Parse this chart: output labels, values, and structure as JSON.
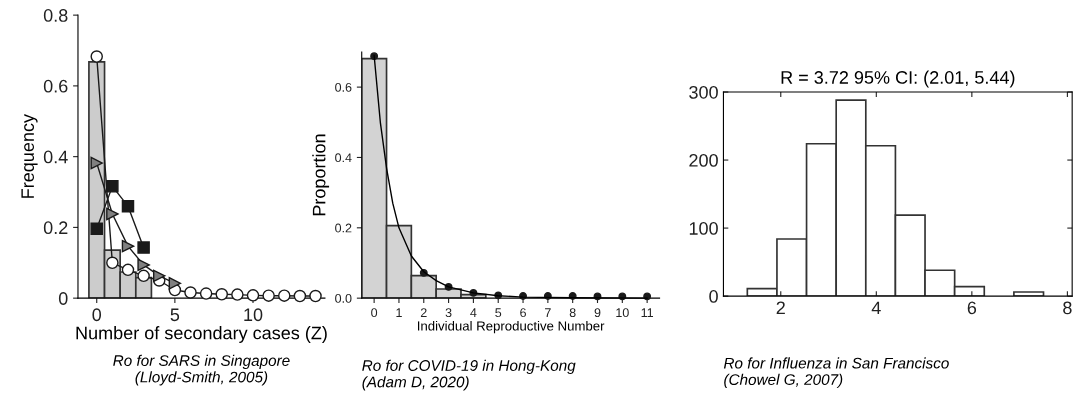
{
  "chart_data": [
    {
      "type": "histogram",
      "bins": [
        -0.5,
        0.5,
        1.5,
        2.5,
        3.5
      ],
      "values": [
        0.668,
        0.136,
        0.074,
        0.058
      ],
      "color": "#cccccc",
      "xlabel": "Number of secondary cases (Z)",
      "ylabel": "Frequency",
      "xlim": [
        -1.2,
        14.6
      ],
      "ylim": [
        0,
        0.8
      ],
      "xticks": [
        0,
        5,
        10
      ],
      "yticks": [
        0,
        {
          "value": 0.2,
          "label": "0.2"
        },
        {
          "value": 0.4,
          "label": "0.4"
        },
        {
          "value": 0.6,
          "label": "0.6"
        },
        {
          "value": 0.8,
          "label": "0.8"
        }
      ],
      "grid": false,
      "legend": false,
      "annotations": [
        "Ro for SARS in Singapore\n(Lloyd-Smith, 2005)"
      ],
      "series": [
        {
          "type": "line",
          "marker": "square",
          "color": "#1a1a1a",
          "x": [
            0,
            1,
            2,
            3
          ],
          "values": [
            0.196,
            0.316,
            0.26,
            0.143
          ]
        },
        {
          "type": "line",
          "marker": "triangle",
          "color": "#808080",
          "x": [
            0,
            1,
            2,
            3,
            4,
            5
          ],
          "values": [
            0.382,
            0.238,
            0.147,
            0.094,
            0.063,
            0.042
          ]
        },
        {
          "type": "line",
          "marker": "circle",
          "color": "#ffffff",
          "x": [
            0,
            1,
            2,
            3,
            4,
            5,
            6,
            7,
            8,
            9,
            10,
            11,
            12,
            13,
            14
          ],
          "values": [
            0.683,
            0.1,
            0.08,
            0.063,
            0.05,
            0.023,
            0.016,
            0.013,
            0.011,
            0.01,
            0.008,
            0.007,
            0.007,
            0.006,
            0.006
          ]
        }
      ]
    },
    {
      "type": "histogram",
      "bins": [
        -0.5,
        0.5,
        1.5,
        2.5,
        3.5,
        4.5
      ],
      "values": [
        0.681,
        0.206,
        0.064,
        0.026,
        0.01
      ],
      "color": "#d3d3d3",
      "xlabel": "Individual Reproductive Number",
      "ylabel": "Proportion",
      "xlim": [
        -0.5,
        11.5
      ],
      "ylim": [
        0,
        0.7
      ],
      "xticks": [
        0,
        1,
        2,
        3,
        4,
        5,
        6,
        7,
        8,
        9,
        10,
        11
      ],
      "yticks": [
        {
          "value": 0,
          "label": "0.0"
        },
        {
          "value": 0.2,
          "label": "0.2"
        },
        {
          "value": 0.4,
          "label": "0.4"
        },
        {
          "value": 0.6,
          "label": "0.6"
        }
      ],
      "grid": false,
      "legend": false,
      "annotations": [
        "Ro for COVID-19 in Hong-Kong\n(Adam D, 2020)"
      ],
      "series": [
        {
          "type": "line",
          "marker": "none",
          "color": "#000000",
          "x": [
            0,
            0.25,
            0.5,
            0.75,
            1,
            1.5,
            2,
            2.5,
            3,
            4,
            5,
            6,
            8,
            11
          ],
          "values": [
            0.69,
            0.5,
            0.37,
            0.27,
            0.2,
            0.12,
            0.075,
            0.05,
            0.032,
            0.015,
            0.007,
            0.003,
            0.001,
            0
          ]
        },
        {
          "type": "scatter",
          "marker": "circle",
          "color": "#1a1a1a",
          "x": [
            0,
            2,
            3,
            4,
            5,
            6,
            7,
            8,
            9,
            10,
            11
          ],
          "values": [
            0.688,
            0.072,
            0.032,
            0.015,
            0.008,
            0.006,
            0.006,
            0.006,
            0.005,
            0.005,
            0.005
          ]
        }
      ]
    },
    {
      "type": "histogram",
      "title": "R = 3.72 95% CI: (2.01, 5.44)",
      "bins": [
        1.3,
        1.92,
        2.54,
        3.16,
        3.78,
        4.4,
        5.02,
        5.64,
        6.26,
        6.88,
        7.5
      ],
      "values": [
        11,
        84,
        224,
        288,
        221,
        119,
        38,
        14,
        0,
        6
      ],
      "color": "#ffffff",
      "xlim": [
        0.8,
        8.1
      ],
      "ylim": [
        0,
        300
      ],
      "xticks": [
        2,
        4,
        6,
        8
      ],
      "yticks": [
        0,
        100,
        200,
        300
      ],
      "grid": false,
      "legend": false,
      "annotations": [
        "Ro for Influenza in San Francisco\n(Chowel G, 2007)"
      ]
    }
  ]
}
